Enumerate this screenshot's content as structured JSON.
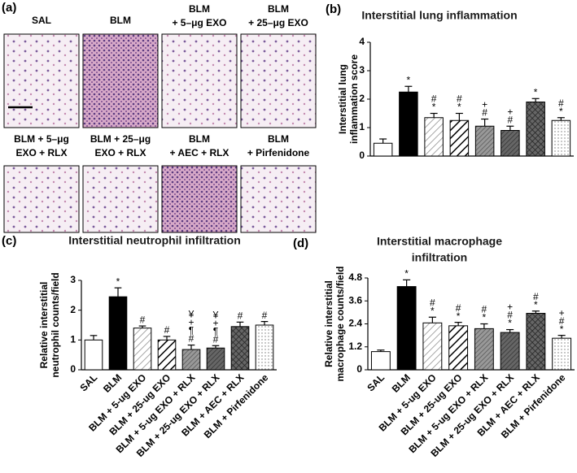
{
  "panel_a": {
    "label": "(a)",
    "images": [
      {
        "label": [
          "SAL"
        ]
      },
      {
        "label": [
          "BLM"
        ]
      },
      {
        "label": [
          "BLM",
          "+ 5–μg EXO"
        ]
      },
      {
        "label": [
          "BLM",
          "+ 25–μg EXO"
        ]
      },
      {
        "label": [
          "BLM + 5–μg",
          "EXO + RLX"
        ]
      },
      {
        "label": [
          "BLM + 25–μg",
          "EXO + RLX"
        ]
      },
      {
        "label": [
          "BLM",
          "+ AEC + RLX"
        ]
      },
      {
        "label": [
          "BLM",
          "+ Pirfenidone"
        ]
      }
    ]
  },
  "chart_data": [
    {
      "type": "bar",
      "panel_label": "(b)",
      "title": [
        "Interstitial lung inflammation"
      ],
      "ylabel": [
        "Interstitial lung",
        "inflammation score"
      ],
      "categories": [
        null,
        null,
        null,
        null,
        null,
        null,
        null,
        null
      ],
      "values": [
        0.45,
        2.25,
        1.35,
        1.25,
        1.05,
        0.9,
        1.9,
        1.25
      ],
      "errors": [
        0.15,
        0.2,
        0.15,
        0.25,
        0.25,
        0.15,
        0.12,
        0.1
      ],
      "annotations": [
        null,
        [
          "*"
        ],
        [
          "#",
          "*"
        ],
        [
          "#",
          "*"
        ],
        [
          "+",
          "#"
        ],
        [
          "+",
          "#"
        ],
        [
          "*"
        ],
        [
          "#",
          "*"
        ]
      ],
      "ylim": [
        0,
        4
      ],
      "yticks": [
        0,
        1,
        2,
        3,
        4
      ]
    },
    {
      "type": "bar",
      "panel_label": "(c)",
      "title": [
        "Interstitial neutrophil infiltration"
      ],
      "ylabel": [
        "Relative interstitial",
        "neutrophil counts/field"
      ],
      "categories": [
        "SAL",
        "BLM",
        "BLM + 5-ug EXO",
        "BLM + 25-ug EXO",
        "BLM + 5-ug EXO + RLX",
        "BLM + 25-ug EXO + RLX",
        "BLM + AEC + RLX",
        "BLM + Pirfenidone"
      ],
      "values": [
        1.0,
        2.45,
        1.4,
        1.0,
        0.68,
        0.73,
        1.45,
        1.5
      ],
      "errors": [
        0.15,
        0.3,
        0.07,
        0.12,
        0.15,
        0.08,
        0.15,
        0.12
      ],
      "annotations": [
        null,
        [
          "*"
        ],
        [
          "#"
        ],
        [
          "#"
        ],
        [
          "¥",
          "+",
          "¶",
          "#"
        ],
        [
          "¥",
          "+",
          "¶",
          "#"
        ],
        [
          "#"
        ],
        [
          "#"
        ]
      ],
      "ylim": [
        0,
        3
      ],
      "yticks": [
        0,
        1,
        2,
        3
      ]
    },
    {
      "type": "bar",
      "panel_label": "(d)",
      "title": [
        "Interstitial macrophage",
        "infiltration"
      ],
      "ylabel": [
        "Relative interstitial",
        "macrophage counts/field"
      ],
      "categories": [
        "SAL",
        "BLM",
        "BLM + 5-ug EXO",
        "BLM + 25-ug EXO",
        "BLM + 5-ug EXO + RLX",
        "BLM + 25-ug EXO + RLX",
        "BLM + AEC + RLX",
        "BLM + Pirfenidone"
      ],
      "values": [
        0.95,
        4.35,
        2.45,
        2.3,
        2.15,
        1.95,
        2.95,
        1.65
      ],
      "errors": [
        0.08,
        0.35,
        0.3,
        0.18,
        0.25,
        0.15,
        0.12,
        0.15
      ],
      "annotations": [
        null,
        [
          "*"
        ],
        [
          "#",
          "*"
        ],
        [
          "#",
          "*"
        ],
        [
          "#",
          "*"
        ],
        [
          "+",
          "#",
          "*"
        ],
        [
          "#",
          "*"
        ],
        [
          "+",
          "#",
          "*"
        ]
      ],
      "ylim": [
        0,
        4.8
      ],
      "yticks": [
        0,
        1.2,
        2.4,
        3.6,
        4.8
      ]
    }
  ]
}
